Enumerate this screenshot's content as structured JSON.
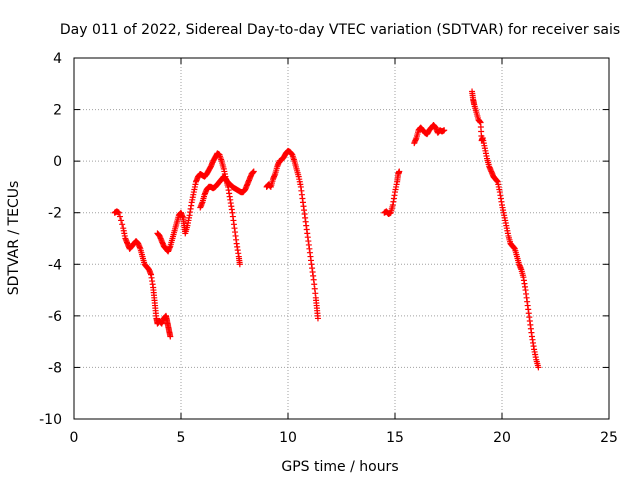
{
  "chart_data": {
    "type": "scatter",
    "title": "Day 011 of 2022, Sidereal Day-to-day VTEC variation (SDTVAR) for receiver sais",
    "xlabel": "GPS time / hours",
    "ylabel": "SDTVAR / TECUs",
    "xlim": [
      0,
      25
    ],
    "ylim": [
      -10,
      4
    ],
    "xticks": [
      0,
      5,
      10,
      15,
      20,
      25
    ],
    "yticks": [
      -10,
      -8,
      -6,
      -4,
      -2,
      0,
      2,
      4
    ],
    "grid": true,
    "marker": "+",
    "color": "#ff0000",
    "series": [
      {
        "points": [
          [
            1.9,
            -2.0
          ],
          [
            2.0,
            -1.95
          ],
          [
            2.1,
            -2.0
          ],
          [
            2.3,
            -2.6
          ],
          [
            2.4,
            -3.0
          ],
          [
            2.5,
            -3.2
          ],
          [
            2.6,
            -3.4
          ],
          [
            2.7,
            -3.3
          ],
          [
            2.8,
            -3.2
          ],
          [
            2.9,
            -3.1
          ],
          [
            3.0,
            -3.2
          ],
          [
            3.1,
            -3.4
          ],
          [
            3.2,
            -3.7
          ],
          [
            3.3,
            -4.0
          ],
          [
            3.4,
            -4.1
          ],
          [
            3.5,
            -4.2
          ],
          [
            3.6,
            -4.4
          ],
          [
            3.7,
            -4.9
          ],
          [
            3.75,
            -5.3
          ],
          [
            3.8,
            -5.7
          ],
          [
            3.85,
            -6.1
          ],
          [
            3.9,
            -6.3
          ],
          [
            4.0,
            -6.2
          ],
          [
            4.1,
            -6.3
          ],
          [
            4.2,
            -6.1
          ],
          [
            4.3,
            -6.0
          ],
          [
            4.35,
            -6.2
          ],
          [
            4.4,
            -6.4
          ],
          [
            4.45,
            -6.6
          ],
          [
            4.5,
            -6.8
          ]
        ]
      },
      {
        "points": [
          [
            3.9,
            -2.8
          ],
          [
            4.0,
            -2.9
          ],
          [
            4.1,
            -3.1
          ],
          [
            4.2,
            -3.3
          ],
          [
            4.3,
            -3.4
          ],
          [
            4.4,
            -3.5
          ],
          [
            4.5,
            -3.3
          ],
          [
            4.6,
            -3.0
          ],
          [
            4.7,
            -2.7
          ],
          [
            4.8,
            -2.4
          ],
          [
            4.9,
            -2.1
          ],
          [
            5.0,
            -2.0
          ],
          [
            5.1,
            -2.2
          ],
          [
            5.15,
            -2.5
          ],
          [
            5.2,
            -2.8
          ],
          [
            5.3,
            -2.5
          ],
          [
            5.4,
            -2.1
          ],
          [
            5.5,
            -1.6
          ],
          [
            5.6,
            -1.2
          ],
          [
            5.7,
            -0.8
          ],
          [
            5.8,
            -0.6
          ],
          [
            5.9,
            -0.5
          ],
          [
            6.0,
            -0.55
          ],
          [
            6.1,
            -0.6
          ],
          [
            6.2,
            -0.5
          ],
          [
            6.3,
            -0.35
          ],
          [
            6.4,
            -0.2
          ],
          [
            6.5,
            0.0
          ],
          [
            6.6,
            0.15
          ],
          [
            6.7,
            0.3
          ],
          [
            6.8,
            0.25
          ],
          [
            6.9,
            0.0
          ],
          [
            7.0,
            -0.3
          ],
          [
            7.1,
            -0.7
          ],
          [
            7.2,
            -1.0
          ],
          [
            7.3,
            -1.5
          ],
          [
            7.4,
            -2.0
          ],
          [
            7.5,
            -2.6
          ],
          [
            7.6,
            -3.2
          ],
          [
            7.7,
            -3.7
          ],
          [
            7.75,
            -4.0
          ]
        ]
      },
      {
        "points": [
          [
            5.9,
            -1.8
          ],
          [
            6.0,
            -1.6
          ],
          [
            6.1,
            -1.3
          ],
          [
            6.2,
            -1.1
          ],
          [
            6.3,
            -1.0
          ],
          [
            6.4,
            -1.0
          ],
          [
            6.5,
            -1.05
          ],
          [
            6.6,
            -1.0
          ],
          [
            6.7,
            -0.9
          ],
          [
            6.8,
            -0.8
          ],
          [
            6.9,
            -0.7
          ],
          [
            7.0,
            -0.6
          ],
          [
            7.1,
            -0.7
          ],
          [
            7.2,
            -0.85
          ],
          [
            7.3,
            -0.9
          ],
          [
            7.4,
            -1.0
          ],
          [
            7.5,
            -1.05
          ],
          [
            7.6,
            -1.1
          ],
          [
            7.7,
            -1.15
          ],
          [
            7.8,
            -1.2
          ],
          [
            7.9,
            -1.2
          ],
          [
            8.0,
            -1.1
          ],
          [
            8.1,
            -0.9
          ],
          [
            8.2,
            -0.7
          ],
          [
            8.3,
            -0.5
          ],
          [
            8.4,
            -0.4
          ]
        ]
      },
      {
        "points": [
          [
            9.0,
            -1.0
          ],
          [
            9.1,
            -0.9
          ],
          [
            9.2,
            -1.0
          ],
          [
            9.3,
            -0.7
          ],
          [
            9.4,
            -0.5
          ],
          [
            9.5,
            -0.2
          ],
          [
            9.6,
            0.0
          ],
          [
            9.7,
            0.05
          ],
          [
            9.8,
            0.15
          ],
          [
            9.9,
            0.3
          ],
          [
            10.0,
            0.4
          ],
          [
            10.1,
            0.35
          ],
          [
            10.2,
            0.25
          ],
          [
            10.3,
            0.0
          ],
          [
            10.4,
            -0.3
          ],
          [
            10.5,
            -0.6
          ],
          [
            10.6,
            -1.0
          ],
          [
            10.7,
            -1.6
          ],
          [
            10.8,
            -2.2
          ],
          [
            10.9,
            -2.8
          ],
          [
            11.0,
            -3.4
          ],
          [
            11.1,
            -4.0
          ],
          [
            11.2,
            -4.6
          ],
          [
            11.3,
            -5.3
          ],
          [
            11.35,
            -5.7
          ],
          [
            11.4,
            -6.1
          ]
        ]
      },
      {
        "points": [
          [
            14.5,
            -2.0
          ],
          [
            14.6,
            -1.95
          ],
          [
            14.7,
            -2.05
          ],
          [
            14.8,
            -2.0
          ],
          [
            14.9,
            -1.7
          ],
          [
            15.0,
            -1.2
          ],
          [
            15.1,
            -0.8
          ],
          [
            15.15,
            -0.5
          ],
          [
            15.2,
            -0.4
          ]
        ]
      },
      {
        "points": [
          [
            15.9,
            0.7
          ],
          [
            16.0,
            0.9
          ],
          [
            16.1,
            1.2
          ],
          [
            16.2,
            1.3
          ],
          [
            16.3,
            1.2
          ],
          [
            16.4,
            1.1
          ],
          [
            16.5,
            1.05
          ],
          [
            16.6,
            1.2
          ],
          [
            16.7,
            1.3
          ],
          [
            16.8,
            1.4
          ],
          [
            16.9,
            1.3
          ],
          [
            17.0,
            1.1
          ],
          [
            17.1,
            1.2
          ],
          [
            17.2,
            1.15
          ],
          [
            17.3,
            1.2
          ]
        ]
      },
      {
        "points": [
          [
            18.6,
            2.7
          ],
          [
            18.65,
            2.4
          ],
          [
            18.7,
            2.2
          ],
          [
            18.8,
            1.9
          ],
          [
            18.9,
            1.6
          ],
          [
            19.0,
            1.5
          ],
          [
            19.05,
            0.8
          ],
          [
            19.1,
            0.9
          ],
          [
            19.2,
            0.5
          ],
          [
            19.3,
            0.1
          ],
          [
            19.4,
            -0.2
          ],
          [
            19.5,
            -0.4
          ],
          [
            19.6,
            -0.6
          ],
          [
            19.7,
            -0.7
          ],
          [
            19.8,
            -0.8
          ],
          [
            19.9,
            -1.2
          ],
          [
            20.0,
            -1.7
          ],
          [
            20.1,
            -2.1
          ],
          [
            20.2,
            -2.5
          ],
          [
            20.3,
            -2.9
          ],
          [
            20.4,
            -3.2
          ],
          [
            20.5,
            -3.3
          ],
          [
            20.6,
            -3.4
          ],
          [
            20.7,
            -3.7
          ],
          [
            20.8,
            -4.0
          ],
          [
            20.9,
            -4.2
          ],
          [
            21.0,
            -4.5
          ],
          [
            21.1,
            -5.0
          ],
          [
            21.2,
            -5.6
          ],
          [
            21.3,
            -6.2
          ],
          [
            21.4,
            -6.8
          ],
          [
            21.5,
            -7.3
          ],
          [
            21.6,
            -7.7
          ],
          [
            21.7,
            -8.0
          ]
        ]
      }
    ]
  }
}
